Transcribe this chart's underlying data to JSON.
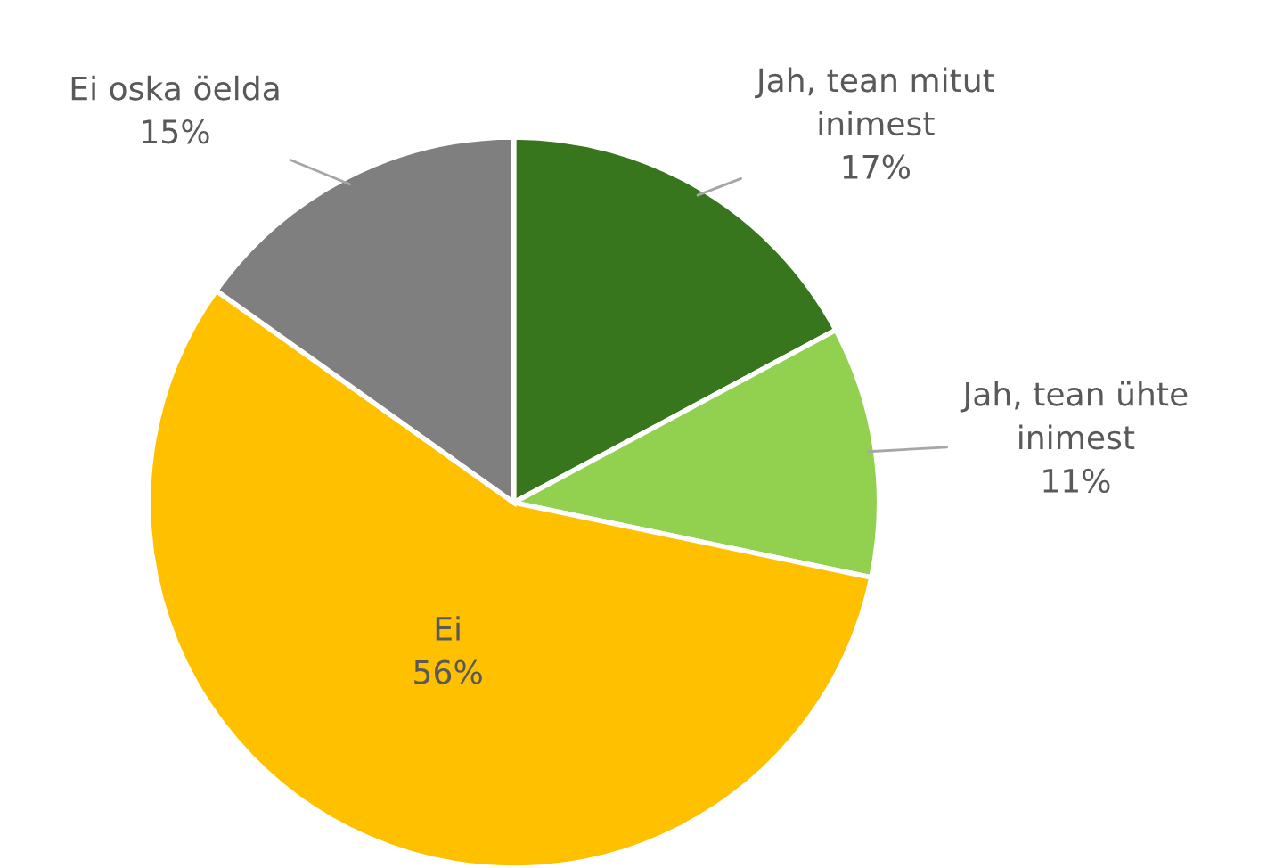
{
  "chart_data": {
    "type": "pie",
    "categories": [
      "Jah, tean mitut inimest",
      "Jah, tean ühte inimest",
      "Ei",
      "Ei oska öelda"
    ],
    "values": [
      17,
      11,
      56,
      15
    ],
    "colors": [
      "#38761d",
      "#92d050",
      "#ffc000",
      "#7f7f7f"
    ],
    "value_labels": [
      "17%",
      "11%",
      "56%",
      "15%"
    ],
    "legend": false
  }
}
